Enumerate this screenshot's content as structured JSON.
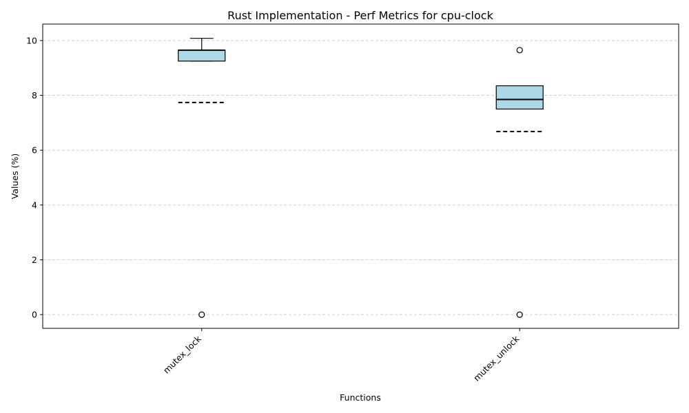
{
  "chart_data": {
    "type": "box",
    "title": "Rust Implementation - Perf Metrics for cpu-clock",
    "xlabel": "Functions",
    "ylabel": "Values (%)",
    "ylim": [
      -0.5,
      10.6
    ],
    "yticks": [
      0,
      2,
      4,
      6,
      8,
      10
    ],
    "grid": "y-dashed",
    "colors": {
      "box_fill": "#add8e6",
      "box_edge": "#000000",
      "grid": "#c8c8c8",
      "mean_line": "#000000"
    },
    "categories": [
      "mutex_lock",
      "mutex_unlock"
    ],
    "boxes": [
      {
        "label": "mutex_lock",
        "whisker_low": 9.25,
        "q1": 9.25,
        "median": 9.65,
        "q3": 9.65,
        "whisker_high": 10.08,
        "mean": 7.74,
        "outliers": [
          0
        ]
      },
      {
        "label": "mutex_unlock",
        "whisker_low": 7.5,
        "q1": 7.5,
        "median": 7.85,
        "q3": 8.35,
        "whisker_high": 8.35,
        "mean": 6.68,
        "outliers": [
          9.65,
          0
        ]
      }
    ]
  }
}
